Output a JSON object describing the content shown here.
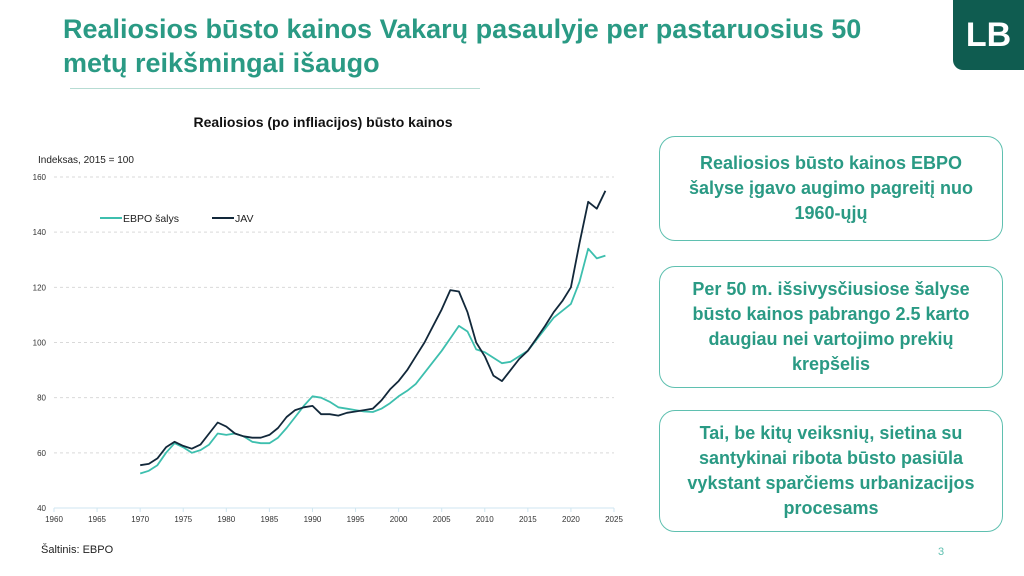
{
  "slide": {
    "title": "Realiosios būsto kainos Vakarų pasaulyje per pastaruosius 50 metų reikšmingai išaugo",
    "logo": "LB",
    "source": "Šaltinis: EBPO",
    "page_number": "3",
    "callouts": [
      "Realiosios būsto kainos EBPO šalyse įgavo augimo pagreitį nuo 1960-ųjų",
      "Per 50 m. išsivysčiusiose šalyse būsto kainos pabrango 2.5 karto daugiau nei vartojimo prekių krepšelis",
      "Tai, be kitų veiksnių, sietina su santykinai ribota būsto pasiūla vykstant sparčiems urbanizacijos procesams"
    ]
  },
  "chart_data": {
    "type": "line",
    "title": "Realiosios (po infliacijos) būsto kainos",
    "ylabel": "Indeksas, 2015 = 100",
    "xlabel": "",
    "xlim": [
      1960,
      2025
    ],
    "ylim": [
      40,
      160
    ],
    "xticks": [
      "1960",
      "1965",
      "1970",
      "1975",
      "1980",
      "1985",
      "1990",
      "1995",
      "2000",
      "2005",
      "2010",
      "2015",
      "2020",
      "2025"
    ],
    "yticks": [
      "40",
      "60",
      "80",
      "100",
      "120",
      "140",
      "160"
    ],
    "grid": "horizontal dashed",
    "legend": "top-left",
    "x": [
      1970,
      1971,
      1972,
      1973,
      1974,
      1975,
      1976,
      1977,
      1978,
      1979,
      1980,
      1981,
      1982,
      1983,
      1984,
      1985,
      1986,
      1987,
      1988,
      1989,
      1990,
      1991,
      1992,
      1993,
      1994,
      1995,
      1996,
      1997,
      1998,
      1999,
      2000,
      2001,
      2002,
      2003,
      2004,
      2005,
      2006,
      2007,
      2008,
      2009,
      2010,
      2011,
      2012,
      2013,
      2014,
      2015,
      2016,
      2017,
      2018,
      2019,
      2020,
      2021,
      2022,
      2023,
      2024
    ],
    "series": [
      {
        "name": "EBPO šalys",
        "color": "#3dbfae",
        "values": [
          52.5,
          53.5,
          55.5,
          60,
          63.5,
          62,
          60,
          61,
          63,
          67,
          66.5,
          67,
          66,
          64,
          63.5,
          63.5,
          65.5,
          69,
          73,
          77,
          80.5,
          80,
          78.5,
          76.5,
          76,
          75.5,
          75,
          74.8,
          76,
          78,
          80.5,
          82.5,
          85,
          89,
          93,
          97,
          101.5,
          106,
          104,
          97.5,
          96.5,
          94.5,
          92.5,
          93,
          95,
          97,
          101,
          105,
          109,
          111.5,
          114,
          122,
          134,
          130.5,
          131.5
        ]
      },
      {
        "name": "JAV",
        "color": "#12283a",
        "values": [
          55.5,
          56,
          58,
          62,
          64,
          62.5,
          61.5,
          63,
          67,
          71,
          69.5,
          67,
          66,
          65.5,
          65.5,
          66.5,
          69,
          73,
          75.5,
          76.5,
          77,
          74,
          74,
          73.5,
          74.5,
          75,
          75.5,
          76,
          79,
          83,
          86,
          90,
          95,
          100,
          106,
          112,
          119,
          118.5,
          111,
          100,
          95,
          88,
          86,
          90,
          94,
          97,
          101.5,
          106,
          111,
          115,
          120,
          136,
          151,
          148.5,
          155
        ]
      }
    ]
  }
}
